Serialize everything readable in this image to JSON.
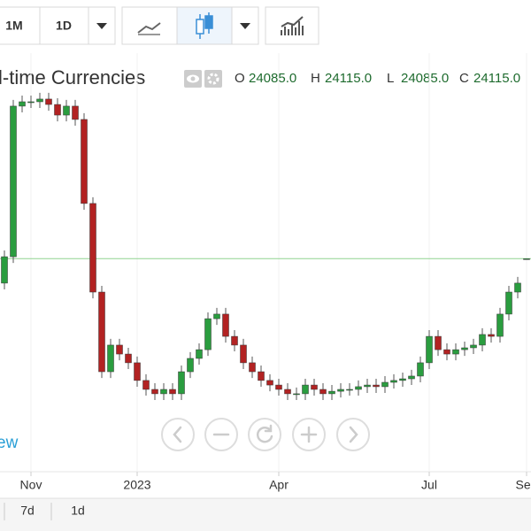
{
  "toolbar": {
    "buttons": [
      "1M",
      "1D"
    ]
  },
  "header": {
    "title": "l-time Currencies",
    "ohlc": [
      {
        "label": "O",
        "value": "24085.0"
      },
      {
        "label": "H",
        "value": "24115.0"
      },
      {
        "label": "L",
        "value": "24085.0"
      },
      {
        "label": "C",
        "value": "24115.0"
      }
    ]
  },
  "watermark": "ew",
  "footer": {
    "ranges": [
      "7d",
      "1d"
    ]
  },
  "chart_data": {
    "type": "candlestick",
    "open": [
      22940,
      24210,
      31450,
      31660,
      31660,
      31790,
      31530,
      31020,
      31450,
      30810,
      26770,
      22510,
      18680,
      19960,
      19530,
      19110,
      18260,
      17830,
      17620,
      17830,
      17620,
      18680,
      19320,
      19740,
      21230,
      21450,
      20380,
      19960,
      19110,
      18680,
      18260,
      18040,
      17830,
      17620,
      17620,
      18040,
      17830,
      17620,
      17740,
      17830,
      17830,
      17960,
      18040,
      17960,
      18170,
      18260,
      18340,
      18470,
      19110,
      20380,
      19740,
      19530,
      19740,
      19830,
      19960,
      20470,
      20380,
      21450,
      22510,
      24085
    ],
    "high": [
      24510,
      31750,
      31960,
      31960,
      32090,
      32090,
      31830,
      31750,
      31750,
      31110,
      27070,
      22810,
      20260,
      20260,
      19830,
      19410,
      18560,
      18130,
      18130,
      18130,
      18980,
      19620,
      20040,
      21530,
      21750,
      21750,
      20680,
      20260,
      19410,
      18980,
      18560,
      18340,
      18130,
      17920,
      18340,
      18340,
      18130,
      18040,
      18130,
      18130,
      18260,
      18340,
      18340,
      18470,
      18560,
      18640,
      18770,
      19410,
      20680,
      20680,
      20040,
      20040,
      20130,
      20260,
      20770,
      20770,
      21750,
      22810,
      23240,
      24115
    ],
    "low": [
      22640,
      23910,
      31150,
      31360,
      31360,
      31230,
      30720,
      30720,
      30510,
      26470,
      22210,
      18380,
      18380,
      19230,
      18810,
      17960,
      17530,
      17320,
      17320,
      17320,
      17320,
      18380,
      19020,
      19440,
      20930,
      20080,
      19660,
      18810,
      18380,
      17960,
      17740,
      17530,
      17320,
      17320,
      17320,
      17530,
      17320,
      17320,
      17440,
      17530,
      17530,
      17660,
      17660,
      17660,
      17870,
      17960,
      18040,
      18170,
      18810,
      19440,
      19230,
      19230,
      19440,
      19530,
      19660,
      20080,
      20080,
      21150,
      22210,
      24085
    ],
    "close": [
      24210,
      31450,
      31660,
      31660,
      31790,
      31530,
      31020,
      31450,
      30810,
      26770,
      22510,
      18680,
      19960,
      19530,
      19110,
      18260,
      17830,
      17620,
      17830,
      17620,
      18680,
      19320,
      19740,
      21230,
      21450,
      20380,
      19960,
      19110,
      18680,
      18260,
      18040,
      17830,
      17620,
      17620,
      18040,
      17830,
      17620,
      17740,
      17830,
      17830,
      17960,
      18040,
      17960,
      18170,
      18260,
      18340,
      18470,
      19110,
      20380,
      19740,
      19530,
      19740,
      19830,
      19960,
      20470,
      20380,
      21450,
      22510,
      22940,
      24115
    ],
    "up_color": "#2a9d3f",
    "down_color": "#b22222",
    "last_line_color": "#8fd48f",
    "xlim": [
      -0.5,
      59.5
    ],
    "ylim": [
      14000,
      34000
    ],
    "xticks": [
      {
        "value": 3,
        "label": "Nov"
      },
      {
        "value": 15,
        "label": "2023"
      },
      {
        "value": 31,
        "label": "Apr"
      },
      {
        "value": 48,
        "label": "Jul"
      },
      {
        "value": 59,
        "label": "Sep"
      }
    ],
    "grid": true
  }
}
